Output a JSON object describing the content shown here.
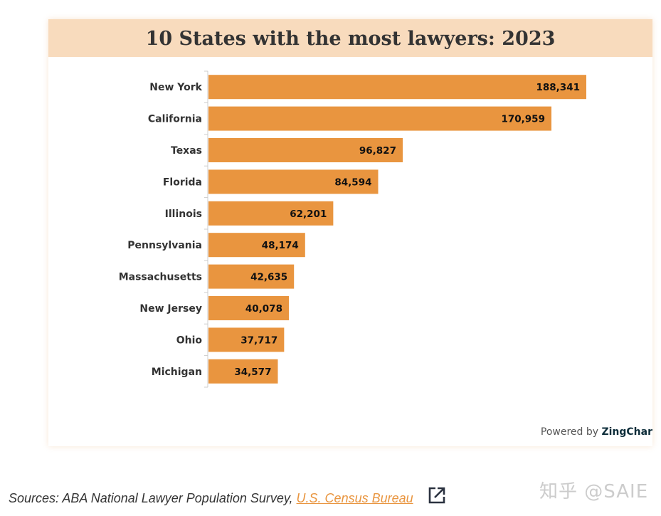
{
  "chart_data": {
    "type": "bar",
    "orientation": "horizontal",
    "title": "10 States with the most lawyers: 2023",
    "categories": [
      "New York",
      "California",
      "Texas",
      "Florida",
      "Illinois",
      "Pennsylvania",
      "Massachusetts",
      "New Jersey",
      "Ohio",
      "Michigan"
    ],
    "values": [
      188341,
      170959,
      96827,
      84594,
      62201,
      48174,
      42635,
      40078,
      37717,
      34577
    ],
    "value_labels": [
      "188,341",
      "170,959",
      "96,827",
      "84,594",
      "62,201",
      "48,174",
      "42,635",
      "40,078",
      "37,717",
      "34,577"
    ],
    "bar_color": "#e9953f",
    "header_color": "#f8dbbd",
    "grid": false
  },
  "credit": {
    "prefix": "Powered by ",
    "brand": "ZingChar"
  },
  "sources": {
    "text": "Sources: ABA National Lawyer Population Survey, ",
    "link": "U.S. Census Bureau",
    "link_color": "#e9953f",
    "icon": "external-link-icon"
  },
  "watermark": "知乎 @SAIE"
}
